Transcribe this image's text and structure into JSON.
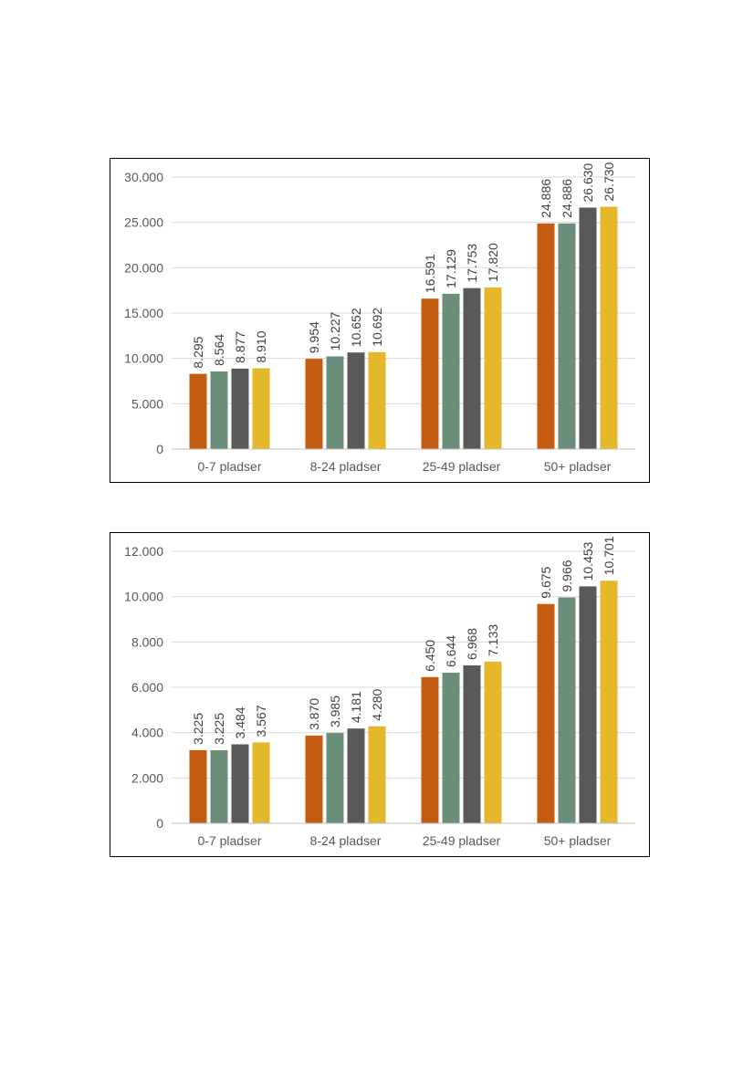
{
  "chart_data": [
    {
      "type": "bar",
      "categories": [
        "0-7 pladser",
        "8-24 pladser",
        "25-49 pladser",
        "50+ pladser"
      ],
      "series": [
        {
          "values": [
            8295,
            9954,
            16591,
            24886
          ],
          "labels": [
            "8.295",
            "9.954",
            "16.591",
            "24.886"
          ],
          "color": "#C55A11"
        },
        {
          "values": [
            8564,
            10227,
            17129,
            24886
          ],
          "labels": [
            "8.564",
            "10.227",
            "17.129",
            "24.886"
          ],
          "color": "#6B8E7A"
        },
        {
          "values": [
            8877,
            10652,
            17753,
            26630
          ],
          "labels": [
            "8.877",
            "10.652",
            "17.753",
            "26.630"
          ],
          "color": "#595959"
        },
        {
          "values": [
            8910,
            10692,
            17820,
            26730
          ],
          "labels": [
            "8.910",
            "10.692",
            "17.820",
            "26.730"
          ],
          "color": "#E5B82C"
        }
      ],
      "ylim": [
        0,
        30000
      ],
      "yticks": [
        0,
        5000,
        10000,
        15000,
        20000,
        25000,
        30000
      ],
      "ytick_labels": [
        "0",
        "5.000",
        "10.000",
        "15.000",
        "20.000",
        "25.000",
        "30.000"
      ],
      "grid": true,
      "legend": "none"
    },
    {
      "type": "bar",
      "categories": [
        "0-7 pladser",
        "8-24 pladser",
        "25-49 pladser",
        "50+ pladser"
      ],
      "series": [
        {
          "values": [
            3225,
            3870,
            6450,
            9675
          ],
          "labels": [
            "3.225",
            "3.870",
            "6.450",
            "9.675"
          ],
          "color": "#C55A11"
        },
        {
          "values": [
            3225,
            3985,
            6644,
            9966
          ],
          "labels": [
            "3.225",
            "3.985",
            "6.644",
            "9.966"
          ],
          "color": "#6B8E7A"
        },
        {
          "values": [
            3484,
            4181,
            6968,
            10453
          ],
          "labels": [
            "3.484",
            "4.181",
            "6.968",
            "10.453"
          ],
          "color": "#595959"
        },
        {
          "values": [
            3567,
            4280,
            7133,
            10701
          ],
          "labels": [
            "3.567",
            "4.280",
            "7.133",
            "10.701"
          ],
          "color": "#E5B82C"
        }
      ],
      "ylim": [
        0,
        12000
      ],
      "yticks": [
        0,
        2000,
        4000,
        6000,
        8000,
        10000,
        12000
      ],
      "ytick_labels": [
        "0",
        "2.000",
        "4.000",
        "6.000",
        "8.000",
        "10.000",
        "12.000"
      ],
      "grid": true,
      "legend": "none"
    }
  ]
}
